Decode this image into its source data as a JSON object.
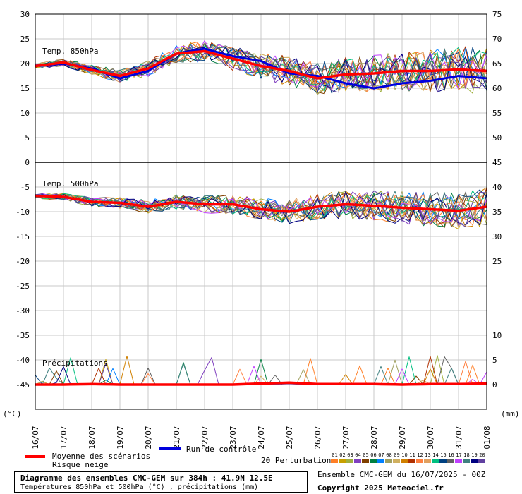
{
  "chart_data": {
    "type": "line",
    "title": "Diagramme des ensembles CMC-GEM sur 384h : 41.9N 12.5E",
    "subtitle": "Températures 850hPa et 500hPa (°C) , précipitations (mm)",
    "ensemble_info": "Ensemble CMC-GEM du 16/07/2025 - 00Z",
    "copyright": "Copyright 2025 Meteociel.fr",
    "left_axis_unit": "(°C)",
    "right_axis_unit": "(mm)",
    "left_axis_ticks": [
      30,
      25,
      20,
      15,
      10,
      5,
      0,
      -5,
      -10,
      -15,
      -20,
      -25,
      -30,
      -35,
      -40,
      -45
    ],
    "ylim": [
      -50,
      30
    ],
    "grid": true,
    "x_labels": [
      "16/07",
      "17/07",
      "18/07",
      "19/07",
      "20/07",
      "21/07",
      "22/07",
      "23/07",
      "24/07",
      "25/07",
      "26/07",
      "27/07",
      "28/07",
      "29/07",
      "30/07",
      "31/07",
      "01/08"
    ],
    "section_labels": [
      "Temp. 850hPa",
      "Temp. 500hPa",
      "Précipitations"
    ],
    "right_axis_850_ticks": [
      75,
      70,
      65,
      60,
      55,
      50,
      45
    ],
    "right_axis_500_ticks": [
      40,
      35,
      30,
      25
    ],
    "right_axis_precip_ticks": [
      10,
      5,
      0
    ],
    "legend": {
      "mean": "Moyenne des scénarios",
      "snow": "Risque neige",
      "control": "Run de contrôle",
      "perturbations": "20 Perturbations",
      "perturbation_numbers": [
        "01",
        "02",
        "03",
        "04",
        "05",
        "06",
        "07",
        "08",
        "09",
        "10",
        "11",
        "12",
        "13",
        "14",
        "15",
        "16",
        "17",
        "18",
        "19",
        "20"
      ]
    },
    "colors": {
      "mean": "#ff0000",
      "control": "#0000dd",
      "perturbations": [
        "#ff7f27",
        "#c8a000",
        "#a0b040",
        "#8040c0",
        "#804000",
        "#008040",
        "#0080ff",
        "#a0a060",
        "#d0b060",
        "#d08000",
        "#b03000",
        "#ff8040",
        "#e0a060",
        "#00c080",
        "#004080",
        "#606060",
        "#c040ff",
        "#408080",
        "#000080",
        "#6040a0"
      ]
    },
    "series": [
      {
        "name": "Temp. 850hPa - Moyenne des scénarios",
        "values": [
          19.5,
          20.2,
          18.7,
          17.5,
          19.0,
          22.0,
          22.5,
          21.0,
          19.5,
          18.5,
          17.0,
          17.8,
          18.0,
          18.5,
          18.5,
          18.8,
          18.5
        ]
      },
      {
        "name": "Temp. 850hPa - Run de contrôle",
        "values": [
          19.5,
          20.0,
          19.0,
          17.0,
          18.5,
          22.0,
          23.0,
          21.5,
          20.5,
          18.0,
          17.5,
          16.0,
          15.0,
          16.0,
          16.5,
          17.5,
          17.0
        ]
      },
      {
        "name": "Temp. 500hPa - Moyenne des scénarios",
        "values": [
          -6.8,
          -7.0,
          -8.0,
          -8.2,
          -9.0,
          -8.0,
          -8.5,
          -8.5,
          -9.5,
          -10.0,
          -9.0,
          -8.5,
          -8.8,
          -9.2,
          -9.5,
          -9.8,
          -9.0
        ]
      },
      {
        "name": "Précipitations - Moyenne des scénarios",
        "values": [
          0,
          0,
          0.1,
          0,
          0,
          0,
          0,
          0,
          0.2,
          0.4,
          0.1,
          0.1,
          0.1,
          0,
          0.1,
          0.1,
          0.2
        ]
      }
    ]
  }
}
